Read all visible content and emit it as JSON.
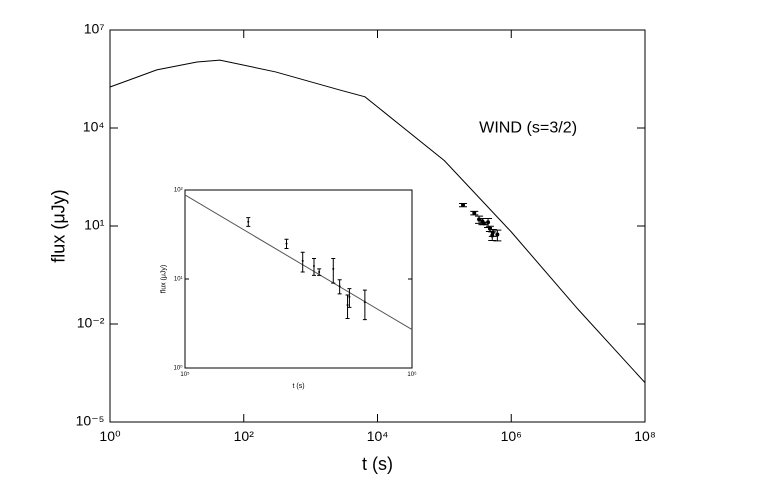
{
  "chart_data": [
    {
      "type": "line",
      "annotation": "WIND (s=3/2)",
      "xlabel": "t (s)",
      "ylabel": "flux (μJy)",
      "log_x": true,
      "log_y": true,
      "xlim": [
        1,
        100000000
      ],
      "ylim": [
        1e-05,
        10000000
      ],
      "xticks": [
        {
          "value": 1,
          "label": "10⁰"
        },
        {
          "value": 100,
          "label": "10²"
        },
        {
          "value": 10000,
          "label": "10⁴"
        },
        {
          "value": 1000000,
          "label": "10⁶"
        },
        {
          "value": 100000000,
          "label": "10⁸"
        }
      ],
      "yticks": [
        {
          "value": 1e-05,
          "label": "10⁻⁵"
        },
        {
          "value": 0.01,
          "label": "10⁻²"
        },
        {
          "value": 10,
          "label": "10¹"
        },
        {
          "value": 10000,
          "label": "10⁴"
        },
        {
          "value": 10000000,
          "label": "10⁷"
        }
      ],
      "series": [
        {
          "color": "#000000",
          "x": [
            1,
            5,
            20,
            44,
            300,
            2750,
            6500,
            100000,
            1000000,
            10000000,
            100000000
          ],
          "values": [
            180000,
            600000,
            1050000,
            1200000,
            520000,
            145000,
            90000,
            1000,
            6.6,
            0.028,
            0.00016
          ]
        },
        {
          "color": "#000000",
          "marker": true,
          "x": [
            190000,
            280000,
            330000,
            370000,
            390000,
            450000,
            480000,
            520000,
            530000,
            620000
          ],
          "values": [
            44,
            25,
            16,
            14,
            12,
            13,
            8.3,
            5.1,
            6.3,
            5.5
          ],
          "errors": [
            5,
            3,
            4,
            3,
            1,
            4,
            1.5,
            1.5,
            1.5,
            2
          ]
        }
      ]
    },
    {
      "type": "line",
      "xlabel": "t (s)",
      "ylabel": "flux (μJy)",
      "log_x": true,
      "log_y": true,
      "xlim": [
        100000,
        1000000
      ],
      "ylim": [
        1,
        100
      ],
      "xticks": [
        {
          "value": 100000,
          "label": "10⁵"
        },
        {
          "value": 1000000,
          "label": "10⁶"
        }
      ],
      "yticks": [
        {
          "value": 1,
          "label": "10⁰"
        },
        {
          "value": 10,
          "label": "10¹"
        },
        {
          "value": 100,
          "label": "10²"
        }
      ],
      "series": [
        {
          "color": "#555555",
          "x": [
            100000,
            1000000
          ],
          "values": [
            88,
            2.7
          ]
        },
        {
          "color": "#000000",
          "marker": true,
          "x": [
            190000,
            280000,
            330000,
            370000,
            390000,
            450000,
            480000,
            520000,
            530000,
            620000
          ],
          "values": [
            44,
            25,
            16,
            14,
            12,
            13,
            8.3,
            5.1,
            6.3,
            5.5
          ],
          "errors": [
            5,
            3,
            4,
            3,
            1,
            4,
            1.5,
            1.5,
            1.5,
            2
          ]
        }
      ]
    }
  ]
}
